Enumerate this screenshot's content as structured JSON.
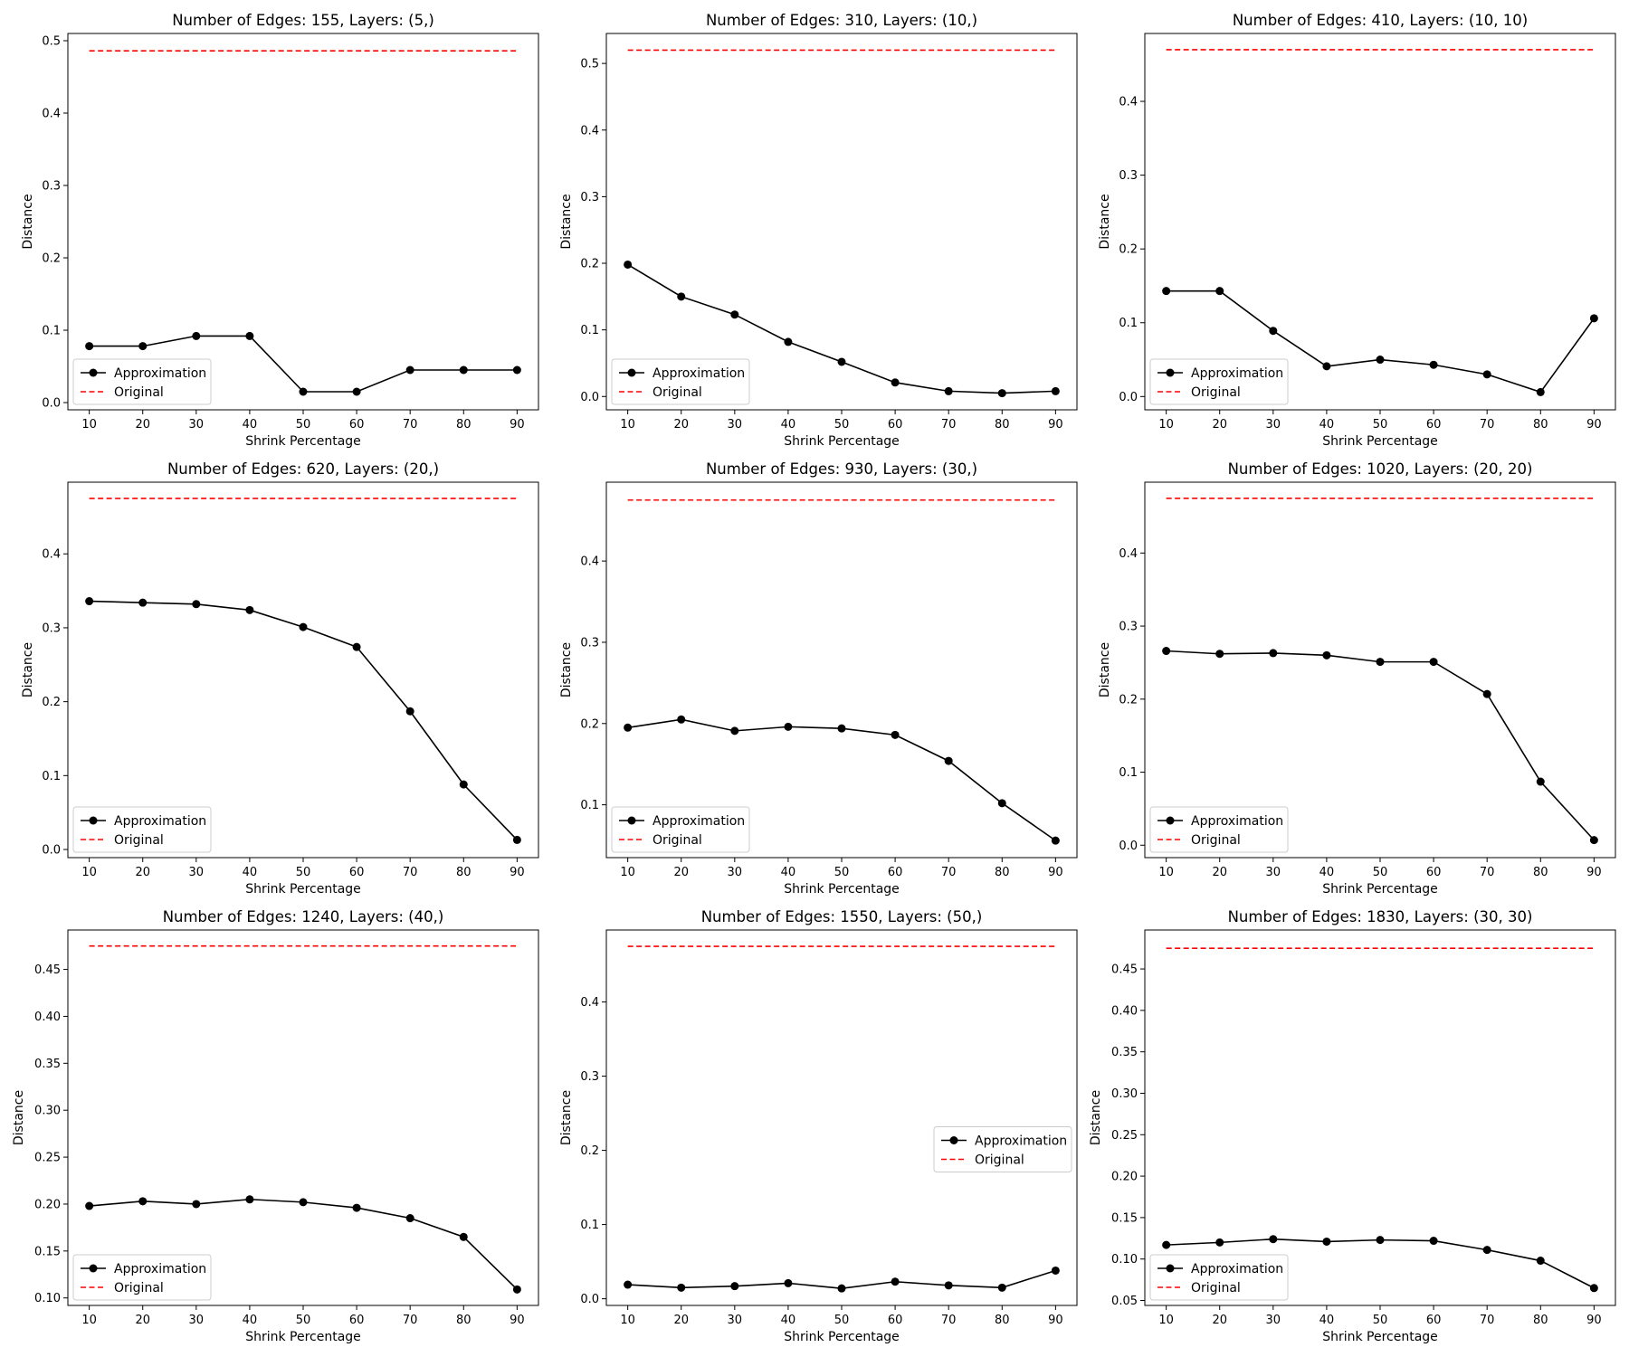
{
  "chart_data": [
    {
      "type": "line",
      "title": "Number of Edges: 155, Layers: (5,)",
      "xlabel": "Shrink Percentage",
      "ylabel": "Distance",
      "x": [
        10,
        20,
        30,
        40,
        50,
        60,
        70,
        80,
        90
      ],
      "xticks": [
        "10",
        "20",
        "30",
        "40",
        "50",
        "60",
        "70",
        "80",
        "90"
      ],
      "ylim": [
        -0.01,
        0.51
      ],
      "yticks": [
        "0.0",
        "0.1",
        "0.2",
        "0.3",
        "0.4",
        "0.5"
      ],
      "legend_position": "lower-left",
      "series": [
        {
          "name": "Approximation",
          "color": "#000000",
          "style": "solid-with-circle-markers",
          "values": [
            0.078,
            0.078,
            0.092,
            0.092,
            0.015,
            0.015,
            0.045,
            0.045,
            0.045
          ]
        },
        {
          "name": "Original",
          "color": "#ff0000",
          "style": "dashed",
          "values": [
            0.486,
            0.486,
            0.486,
            0.486,
            0.486,
            0.486,
            0.486,
            0.486,
            0.486
          ]
        }
      ]
    },
    {
      "type": "line",
      "title": "Number of Edges: 310, Layers: (10,)",
      "xlabel": "Shrink Percentage",
      "ylabel": "Distance",
      "x": [
        10,
        20,
        30,
        40,
        50,
        60,
        70,
        80,
        90
      ],
      "xticks": [
        "10",
        "20",
        "30",
        "40",
        "50",
        "60",
        "70",
        "80",
        "90"
      ],
      "ylim": [
        -0.02,
        0.545
      ],
      "yticks": [
        "0.0",
        "0.1",
        "0.2",
        "0.3",
        "0.4",
        "0.5"
      ],
      "legend_position": "lower-left",
      "series": [
        {
          "name": "Approximation",
          "color": "#000000",
          "style": "solid-with-circle-markers",
          "values": [
            0.198,
            0.15,
            0.123,
            0.082,
            0.052,
            0.021,
            0.008,
            0.005,
            0.008
          ]
        },
        {
          "name": "Original",
          "color": "#ff0000",
          "style": "dashed",
          "values": [
            0.52,
            0.52,
            0.52,
            0.52,
            0.52,
            0.52,
            0.52,
            0.52,
            0.52
          ]
        }
      ]
    },
    {
      "type": "line",
      "title": "Number of Edges: 410, Layers: (10, 10)",
      "xlabel": "Shrink Percentage",
      "ylabel": "Distance",
      "x": [
        10,
        20,
        30,
        40,
        50,
        60,
        70,
        80,
        90
      ],
      "xticks": [
        "10",
        "20",
        "30",
        "40",
        "50",
        "60",
        "70",
        "80",
        "90"
      ],
      "ylim": [
        -0.018,
        0.492
      ],
      "yticks": [
        "0.0",
        "0.1",
        "0.2",
        "0.3",
        "0.4"
      ],
      "legend_position": "lower-left",
      "series": [
        {
          "name": "Approximation",
          "color": "#000000",
          "style": "solid-with-circle-markers",
          "values": [
            0.143,
            0.143,
            0.089,
            0.041,
            0.05,
            0.043,
            0.03,
            0.006,
            0.106
          ]
        },
        {
          "name": "Original",
          "color": "#ff0000",
          "style": "dashed",
          "values": [
            0.47,
            0.47,
            0.47,
            0.47,
            0.47,
            0.47,
            0.47,
            0.47,
            0.47
          ]
        }
      ]
    },
    {
      "type": "line",
      "title": "Number of Edges: 620, Layers: (20,)",
      "xlabel": "Shrink Percentage",
      "ylabel": "Distance",
      "x": [
        10,
        20,
        30,
        40,
        50,
        60,
        70,
        80,
        90
      ],
      "xticks": [
        "10",
        "20",
        "30",
        "40",
        "50",
        "60",
        "70",
        "80",
        "90"
      ],
      "ylim": [
        -0.011,
        0.497
      ],
      "yticks": [
        "0.0",
        "0.1",
        "0.2",
        "0.3",
        "0.4"
      ],
      "legend_position": "lower-left",
      "series": [
        {
          "name": "Approximation",
          "color": "#000000",
          "style": "solid-with-circle-markers",
          "values": [
            0.336,
            0.334,
            0.332,
            0.324,
            0.301,
            0.274,
            0.187,
            0.088,
            0.013
          ]
        },
        {
          "name": "Original",
          "color": "#ff0000",
          "style": "dashed",
          "values": [
            0.475,
            0.475,
            0.475,
            0.475,
            0.475,
            0.475,
            0.475,
            0.475,
            0.475
          ]
        }
      ]
    },
    {
      "type": "line",
      "title": "Number of Edges: 930, Layers: (30,)",
      "xlabel": "Shrink Percentage",
      "ylabel": "Distance",
      "x": [
        10,
        20,
        30,
        40,
        50,
        60,
        70,
        80,
        90
      ],
      "xticks": [
        "10",
        "20",
        "30",
        "40",
        "50",
        "60",
        "70",
        "80",
        "90"
      ],
      "ylim": [
        0.035,
        0.497
      ],
      "yticks": [
        "0.1",
        "0.2",
        "0.3",
        "0.4"
      ],
      "legend_position": "lower-left",
      "series": [
        {
          "name": "Approximation",
          "color": "#000000",
          "style": "solid-with-circle-markers",
          "values": [
            0.195,
            0.205,
            0.191,
            0.196,
            0.194,
            0.186,
            0.154,
            0.102,
            0.056
          ]
        },
        {
          "name": "Original",
          "color": "#ff0000",
          "style": "dashed",
          "values": [
            0.475,
            0.475,
            0.475,
            0.475,
            0.475,
            0.475,
            0.475,
            0.475,
            0.475
          ]
        }
      ]
    },
    {
      "type": "line",
      "title": "Number of Edges: 1020, Layers: (20, 20)",
      "xlabel": "Shrink Percentage",
      "ylabel": "Distance",
      "x": [
        10,
        20,
        30,
        40,
        50,
        60,
        70,
        80,
        90
      ],
      "xticks": [
        "10",
        "20",
        "30",
        "40",
        "50",
        "60",
        "70",
        "80",
        "90"
      ],
      "ylim": [
        -0.017,
        0.497
      ],
      "yticks": [
        "0.0",
        "0.1",
        "0.2",
        "0.3",
        "0.4"
      ],
      "legend_position": "lower-left",
      "series": [
        {
          "name": "Approximation",
          "color": "#000000",
          "style": "solid-with-circle-markers",
          "values": [
            0.266,
            0.262,
            0.263,
            0.26,
            0.251,
            0.251,
            0.207,
            0.087,
            0.007
          ]
        },
        {
          "name": "Original",
          "color": "#ff0000",
          "style": "dashed",
          "values": [
            0.475,
            0.475,
            0.475,
            0.475,
            0.475,
            0.475,
            0.475,
            0.475,
            0.475
          ]
        }
      ]
    },
    {
      "type": "line",
      "title": "Number of Edges: 1240, Layers: (40,)",
      "xlabel": "Shrink Percentage",
      "ylabel": "Distance",
      "x": [
        10,
        20,
        30,
        40,
        50,
        60,
        70,
        80,
        90
      ],
      "xticks": [
        "10",
        "20",
        "30",
        "40",
        "50",
        "60",
        "70",
        "80",
        "90"
      ],
      "ylim": [
        0.092,
        0.492
      ],
      "yticks": [
        "0.10",
        "0.15",
        "0.20",
        "0.25",
        "0.30",
        "0.35",
        "0.40",
        "0.45"
      ],
      "legend_position": "lower-left",
      "series": [
        {
          "name": "Approximation",
          "color": "#000000",
          "style": "solid-with-circle-markers",
          "values": [
            0.198,
            0.203,
            0.2,
            0.205,
            0.202,
            0.196,
            0.185,
            0.165,
            0.109
          ]
        },
        {
          "name": "Original",
          "color": "#ff0000",
          "style": "dashed",
          "values": [
            0.475,
            0.475,
            0.475,
            0.475,
            0.475,
            0.475,
            0.475,
            0.475,
            0.475
          ]
        }
      ]
    },
    {
      "type": "line",
      "title": "Number of Edges: 1550, Layers: (50,)",
      "xlabel": "Shrink Percentage",
      "ylabel": "Distance",
      "x": [
        10,
        20,
        30,
        40,
        50,
        60,
        70,
        80,
        90
      ],
      "xticks": [
        "10",
        "20",
        "30",
        "40",
        "50",
        "60",
        "70",
        "80",
        "90"
      ],
      "ylim": [
        -0.009,
        0.497
      ],
      "yticks": [
        "0.0",
        "0.1",
        "0.2",
        "0.3",
        "0.4"
      ],
      "legend_position": "center-right",
      "series": [
        {
          "name": "Approximation",
          "color": "#000000",
          "style": "solid-with-circle-markers",
          "values": [
            0.019,
            0.015,
            0.017,
            0.021,
            0.014,
            0.023,
            0.018,
            0.015,
            0.038
          ]
        },
        {
          "name": "Original",
          "color": "#ff0000",
          "style": "dashed",
          "values": [
            0.475,
            0.475,
            0.475,
            0.475,
            0.475,
            0.475,
            0.475,
            0.475,
            0.475
          ]
        }
      ]
    },
    {
      "type": "line",
      "title": "Number of Edges: 1830, Layers: (30, 30)",
      "xlabel": "Shrink Percentage",
      "ylabel": "Distance",
      "x": [
        10,
        20,
        30,
        40,
        50,
        60,
        70,
        80,
        90
      ],
      "xticks": [
        "10",
        "20",
        "30",
        "40",
        "50",
        "60",
        "70",
        "80",
        "90"
      ],
      "ylim": [
        0.044,
        0.497
      ],
      "yticks": [
        "0.05",
        "0.10",
        "0.15",
        "0.20",
        "0.25",
        "0.30",
        "0.35",
        "0.40",
        "0.45"
      ],
      "legend_position": "lower-left",
      "series": [
        {
          "name": "Approximation",
          "color": "#000000",
          "style": "solid-with-circle-markers",
          "values": [
            0.117,
            0.12,
            0.124,
            0.121,
            0.123,
            0.122,
            0.111,
            0.098,
            0.065
          ]
        },
        {
          "name": "Original",
          "color": "#ff0000",
          "style": "dashed",
          "values": [
            0.475,
            0.475,
            0.475,
            0.475,
            0.475,
            0.475,
            0.475,
            0.475,
            0.475
          ]
        }
      ]
    }
  ]
}
